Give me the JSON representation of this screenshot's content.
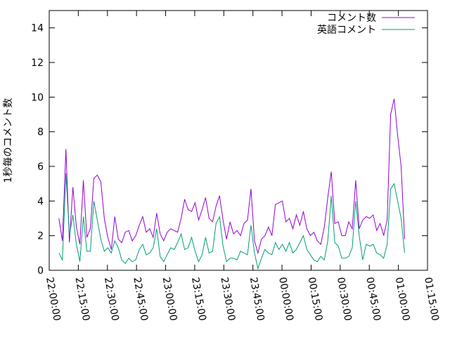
{
  "chart_data": {
    "type": "line",
    "ylabel": "1秒毎のコメント数",
    "x": [
      5,
      6.8,
      8.6,
      10.4,
      12.2,
      14,
      15.8,
      17.6,
      19.4,
      21.2,
      23,
      24.8,
      26.6,
      28.4,
      30.2,
      32,
      33.8,
      35.6,
      37.4,
      39.2,
      41,
      42.8,
      44.6,
      46.4,
      48.2,
      50,
      51.8,
      53.6,
      55.4,
      57.2,
      59,
      60.8,
      62.6,
      64.4,
      66.2,
      68,
      69.8,
      71.6,
      73.4,
      75.2,
      77,
      78.8,
      80.6,
      82.4,
      84.2,
      86,
      87.8,
      89.6,
      91.4,
      93.2,
      95,
      96.8,
      98.6,
      100.4,
      102.2,
      104,
      105.8,
      107.6,
      109.4,
      111.2,
      113,
      114.8,
      116.6,
      118.4,
      120.2,
      122,
      123.8,
      125.6,
      127.4,
      129.2,
      131,
      132.8,
      134.6,
      136.4,
      138.2,
      140,
      141.8,
      143.6,
      145.4,
      147.2,
      149,
      150.8,
      152.6,
      154.4,
      156.2,
      158,
      159.8,
      161.6,
      163.4,
      165.2,
      167,
      168.8,
      170.6,
      172.4,
      174.2,
      176,
      177.8,
      179.6,
      181.4,
      183.2
    ],
    "series": [
      {
        "name": "コメント数",
        "color": "#9400d3",
        "values": [
          3.0,
          1.7,
          7.0,
          1.6,
          4.8,
          2.5,
          1.5,
          5.2,
          1.9,
          2.4,
          5.3,
          5.5,
          5.1,
          3.0,
          1.9,
          1.2,
          3.1,
          1.8,
          1.6,
          2.2,
          2.3,
          1.7,
          2.0,
          2.6,
          3.1,
          2.2,
          2.4,
          1.9,
          3.3,
          2.1,
          1.7,
          2.2,
          2.4,
          2.3,
          2.2,
          3.0,
          4.1,
          3.5,
          3.4,
          3.9,
          2.9,
          3.5,
          4.2,
          3.0,
          2.8,
          3.7,
          4.3,
          2.9,
          1.8,
          2.8,
          2.1,
          2.3,
          2.0,
          2.7,
          2.9,
          4.7,
          1.7,
          1.0,
          1.8,
          2.0,
          2.5,
          2.0,
          3.8,
          3.9,
          4.0,
          2.8,
          3.0,
          2.4,
          3.2,
          2.6,
          3.4,
          2.4,
          2.0,
          2.2,
          1.7,
          1.5,
          2.5,
          4.2,
          5.7,
          2.7,
          2.8,
          2.0,
          2.0,
          2.8,
          2.4,
          5.2,
          2.4,
          2.9,
          3.1,
          3.0,
          3.2,
          2.3,
          2.7,
          2.0,
          2.9,
          9.0,
          9.9,
          7.8,
          6.0,
          1.8
        ]
      },
      {
        "name": "英語コメント",
        "color": "#009e73",
        "values": [
          1.0,
          0.6,
          5.6,
          2.0,
          3.2,
          1.5,
          0.5,
          3.1,
          1.1,
          1.1,
          4.0,
          2.9,
          1.8,
          1.1,
          1.3,
          1.0,
          1.7,
          1.3,
          0.6,
          0.4,
          0.7,
          0.5,
          0.6,
          1.2,
          1.5,
          0.9,
          1.0,
          1.3,
          2.4,
          0.8,
          0.5,
          0.9,
          1.3,
          1.2,
          1.6,
          2.1,
          1.2,
          1.3,
          1.9,
          1.1,
          0.5,
          0.9,
          1.9,
          1.0,
          1.1,
          2.7,
          3.1,
          1.4,
          0.5,
          0.7,
          0.7,
          0.6,
          1.1,
          1.0,
          0.9,
          2.6,
          1.0,
          0.1,
          0.7,
          1.2,
          1.0,
          0.9,
          1.6,
          1.2,
          1.5,
          1.1,
          1.6,
          1.0,
          1.2,
          1.6,
          2.0,
          1.2,
          0.9,
          0.6,
          0.5,
          0.8,
          0.6,
          1.7,
          4.3,
          1.6,
          1.4,
          0.7,
          0.7,
          0.8,
          1.3,
          4.0,
          2.0,
          0.6,
          1.5,
          1.4,
          1.5,
          1.0,
          0.9,
          0.7,
          1.5,
          4.7,
          5.0,
          4.0,
          3.0,
          1.0
        ]
      }
    ],
    "xlim": [
      0,
      195
    ],
    "xticks": [
      {
        "value": 0,
        "label": "22:00:00"
      },
      {
        "value": 15,
        "label": "22:15:00"
      },
      {
        "value": 30,
        "label": "22:30:00"
      },
      {
        "value": 45,
        "label": "22:45:00"
      },
      {
        "value": 60,
        "label": "23:00:00"
      },
      {
        "value": 75,
        "label": "23:15:00"
      },
      {
        "value": 90,
        "label": "23:30:00"
      },
      {
        "value": 105,
        "label": "23:45:00"
      },
      {
        "value": 120,
        "label": "00:00:00"
      },
      {
        "value": 135,
        "label": "00:15:00"
      },
      {
        "value": 150,
        "label": "00:30:00"
      },
      {
        "value": 165,
        "label": "00:45:00"
      },
      {
        "value": 180,
        "label": "01:00:00"
      },
      {
        "value": 195,
        "label": "01:15:00"
      }
    ],
    "ylim": [
      0,
      15
    ],
    "yticks": [
      0,
      2,
      4,
      6,
      8,
      10,
      12,
      14
    ],
    "legend": "top-right"
  }
}
